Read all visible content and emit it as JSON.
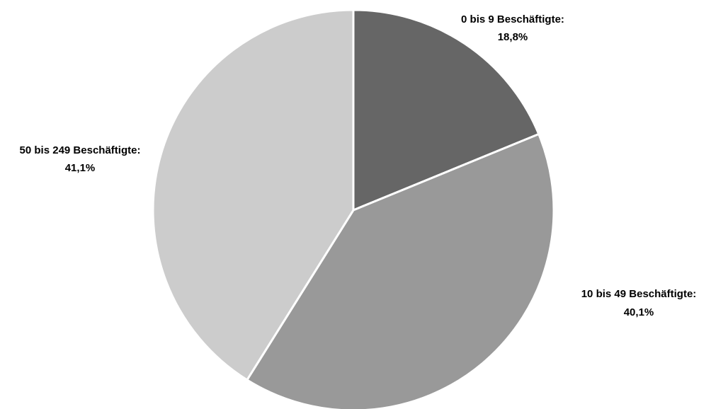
{
  "chart_data": {
    "type": "pie",
    "start_angle_deg": 0,
    "direction": "clockwise",
    "legend": "none",
    "slices": [
      {
        "label": "0 bis 9 Beschäftigte:",
        "value": 18.8,
        "value_label": "18,8%",
        "color": "#666666"
      },
      {
        "label": "10 bis 49 Beschäftigte:",
        "value": 40.1,
        "value_label": "40,1%",
        "color": "#999999"
      },
      {
        "label": "50 bis 249 Beschäftigte:",
        "value": 41.1,
        "value_label": "41,1%",
        "color": "#cccccc"
      }
    ]
  }
}
